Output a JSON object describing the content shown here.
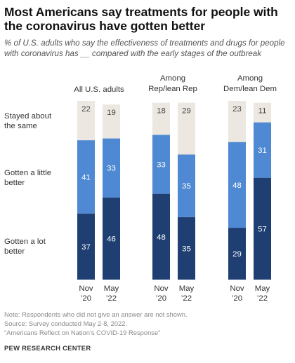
{
  "header": {
    "title": "Most Americans say treatments for people with the coronavirus have gotten better",
    "subtitle": "% of U.S. adults who say the effectiveness of treatments and drugs for people with coronavirus has __ compared with the early stages of the outbreak"
  },
  "chart_data": {
    "type": "bar",
    "stacked": true,
    "groups": [
      {
        "title": [
          "All U.S. adults"
        ]
      },
      {
        "title": [
          "Among",
          "Rep/lean Rep"
        ]
      },
      {
        "title": [
          "Among",
          "Dem/lean Dem"
        ]
      }
    ],
    "categories": [
      [
        "Nov",
        "’20"
      ],
      [
        "May",
        "’22"
      ]
    ],
    "row_labels": [
      [
        "Stayed about",
        "the same"
      ],
      [
        "Gotten a little",
        "better"
      ],
      [
        "Gotten a lot",
        "better"
      ]
    ],
    "series": [
      {
        "name": "Gotten a lot better",
        "color": "#1f3f73",
        "values": [
          [
            37,
            46
          ],
          [
            48,
            35
          ],
          [
            29,
            57
          ]
        ]
      },
      {
        "name": "Gotten a little better",
        "color": "#4f89d3",
        "values": [
          [
            41,
            33
          ],
          [
            33,
            35
          ],
          [
            48,
            31
          ]
        ]
      },
      {
        "name": "Stayed about the same",
        "color": "#ece8e1",
        "values": [
          [
            22,
            19
          ],
          [
            18,
            29
          ],
          [
            23,
            11
          ]
        ]
      }
    ],
    "ylim": [
      0,
      100
    ]
  },
  "footer": {
    "note": "Note: Respondents who did not give an answer are not shown.",
    "source": "Source: Survey conducted May 2-8, 2022.",
    "report": "“Americans Reflect on Nation’s COVID-19 Response”",
    "brand": "PEW RESEARCH CENTER"
  }
}
